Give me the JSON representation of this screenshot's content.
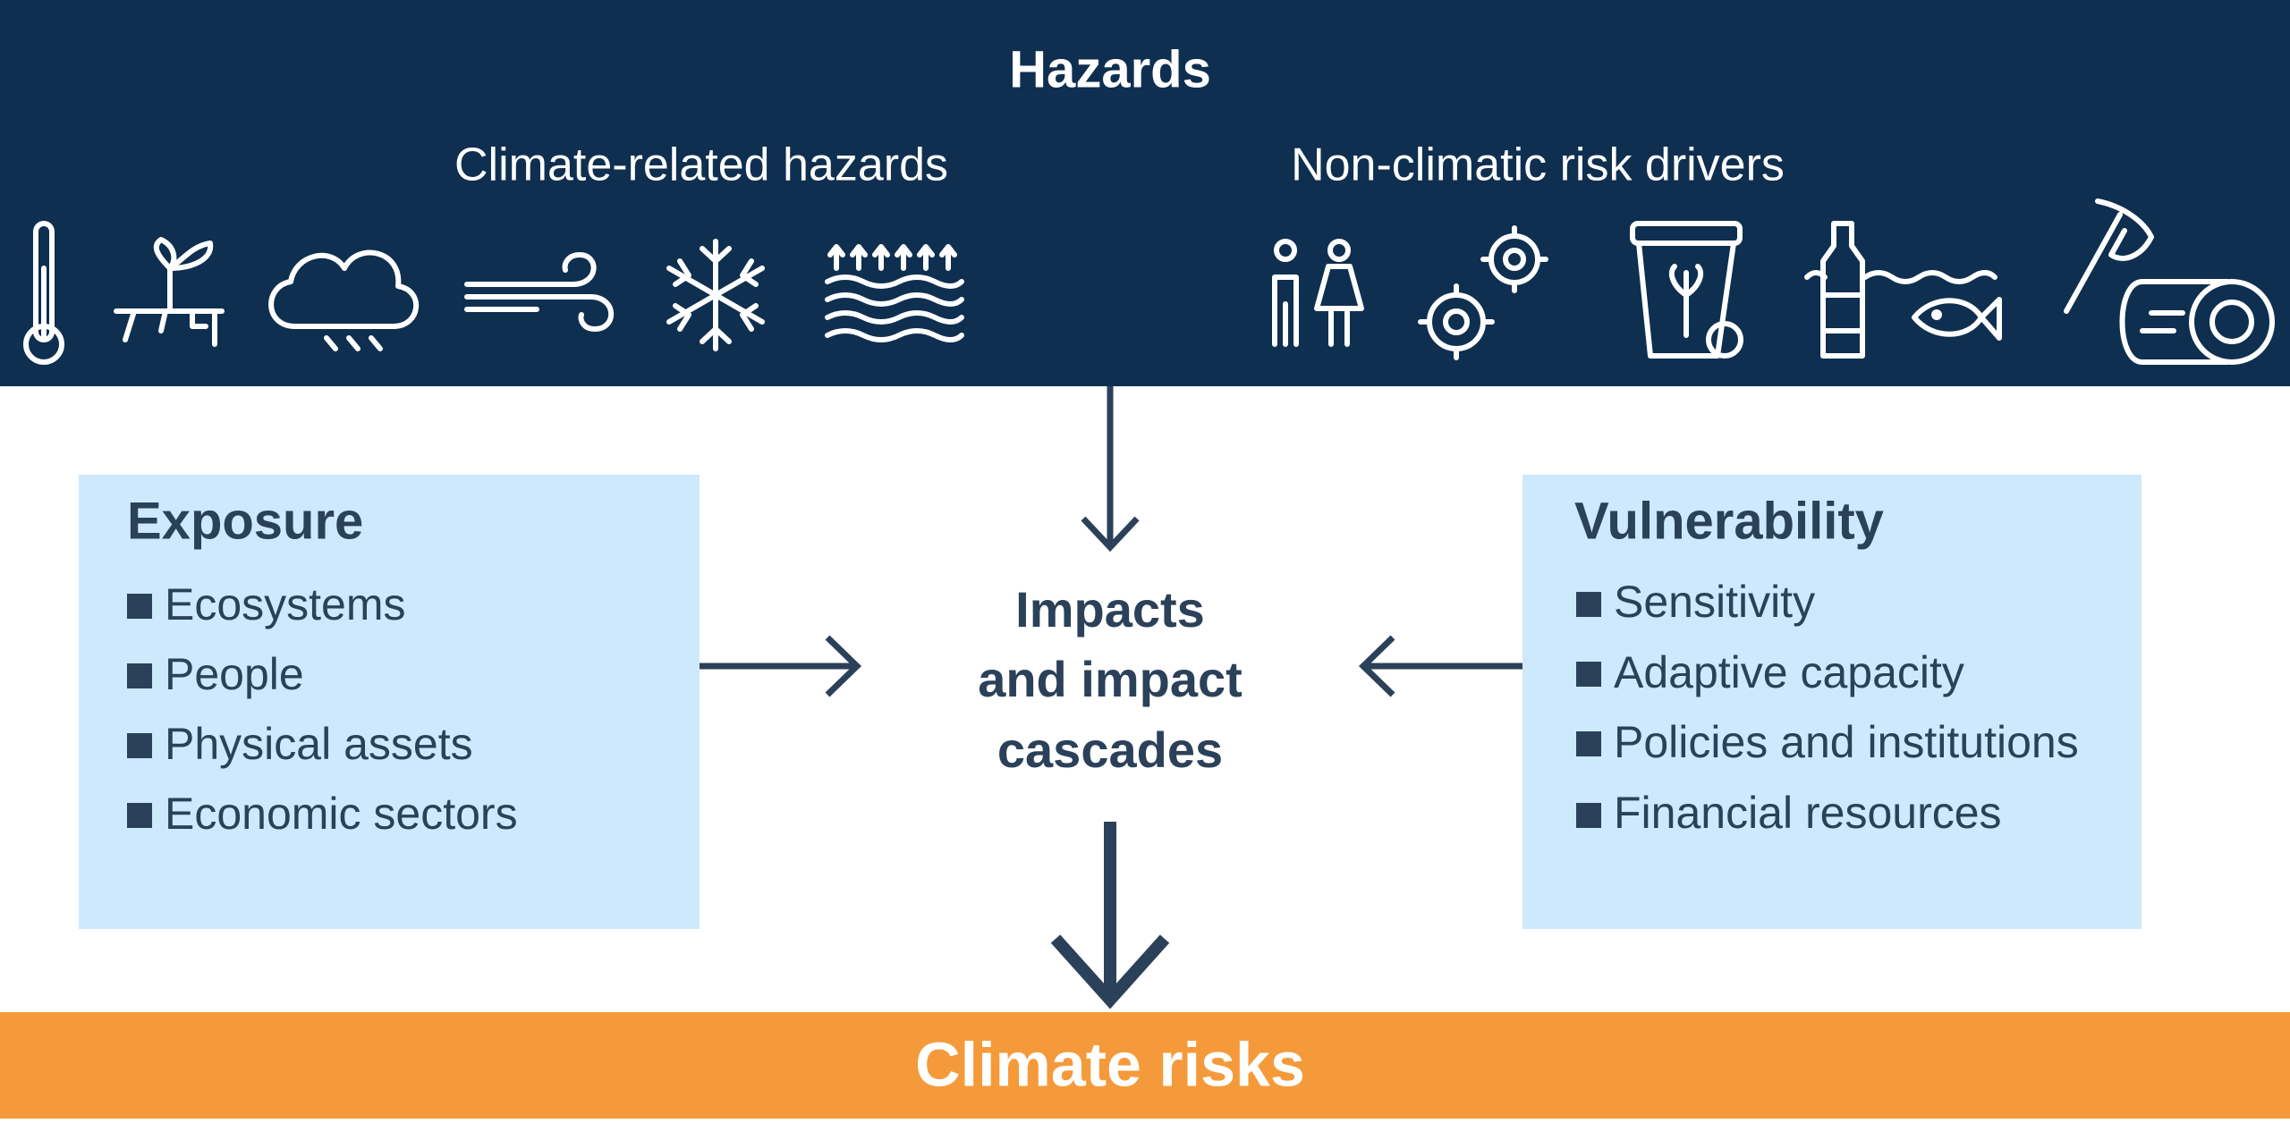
{
  "header": {
    "title": "Hazards",
    "climate_hazards": "Climate-related hazards",
    "non_climatic_drivers": "Non-climatic risk drivers"
  },
  "exposure": {
    "title": "Exposure",
    "items": [
      "Ecosystems",
      "People",
      "Physical assets",
      "Economic sectors"
    ]
  },
  "vulnerability": {
    "title": "Vulnerability",
    "items": [
      "Sensitivity",
      "Adaptive capacity",
      "Policies and institutions",
      "Financial resources"
    ]
  },
  "center": {
    "lines": [
      "Impacts",
      "and impact",
      "cascades"
    ]
  },
  "footer": {
    "title": "Climate risks"
  }
}
